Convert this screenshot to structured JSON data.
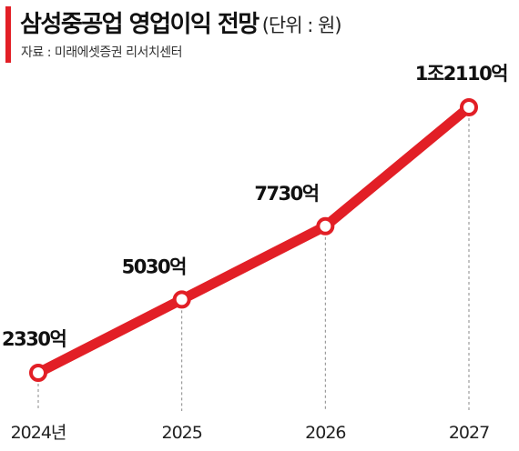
{
  "header": {
    "title": "삼성중공업 영업이익 전망",
    "unit": "(단위 : 원)",
    "source": "자료 : 미래에셋증권 리서치센터"
  },
  "chart_data": {
    "type": "line",
    "categories": [
      "2024년",
      "2025",
      "2026",
      "2027"
    ],
    "series": [
      {
        "values": [
          2330,
          5030,
          7730,
          12110
        ],
        "labels": [
          "2330억",
          "5030억",
          "7730억",
          "1조2110억"
        ]
      }
    ],
    "title": "삼성중공업 영업이익 전망",
    "xlabel": "",
    "ylabel": "",
    "grid": false,
    "legend": "none",
    "colors": {
      "line": "#e21f26",
      "marker_fill": "#ffffff",
      "guide": "#888888"
    }
  }
}
